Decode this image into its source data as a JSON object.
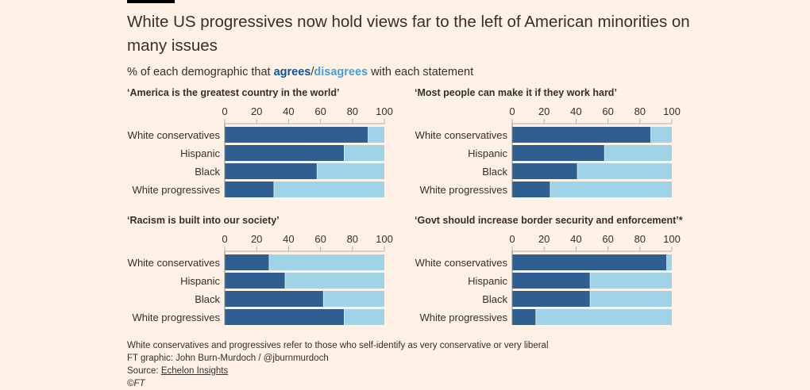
{
  "header": {
    "title": "White US progressives now hold views far to the left of American minorities on many issues",
    "subtitle_prefix": "% of each demographic that ",
    "subtitle_agrees": "agrees",
    "subtitle_slash": "/",
    "subtitle_disagrees": "disagrees",
    "subtitle_suffix": " with each statement"
  },
  "colors": {
    "agree": "#2f5f91",
    "disagree": "#9fd3e8",
    "axis": "#b8b0a8",
    "background": "#fff1e5"
  },
  "chart_data": [
    {
      "type": "bar",
      "orientation": "horizontal",
      "stacked": true,
      "title": "‘America is the greatest country in the world’",
      "categories": [
        "White conservatives",
        "Hispanic",
        "Black",
        "White progressives"
      ],
      "series": [
        {
          "name": "agrees",
          "values": [
            90,
            75,
            58,
            31
          ]
        },
        {
          "name": "disagrees",
          "values": [
            10,
            25,
            42,
            69
          ]
        }
      ],
      "xlim": [
        0,
        100
      ],
      "xticks": [
        "0",
        "20",
        "40",
        "60",
        "80",
        "100"
      ]
    },
    {
      "type": "bar",
      "orientation": "horizontal",
      "stacked": true,
      "title": "‘Most people can make it if they work hard’",
      "categories": [
        "White conservatives",
        "Hispanic",
        "Black",
        "White progressives"
      ],
      "series": [
        {
          "name": "agrees",
          "values": [
            87,
            58,
            41,
            24
          ]
        },
        {
          "name": "disagrees",
          "values": [
            13,
            42,
            59,
            76
          ]
        }
      ],
      "xlim": [
        0,
        100
      ],
      "xticks": [
        "0",
        "20",
        "40",
        "60",
        "80",
        "100"
      ]
    },
    {
      "type": "bar",
      "orientation": "horizontal",
      "stacked": true,
      "title": "‘Racism is built into our society’",
      "categories": [
        "White conservatives",
        "Hispanic",
        "Black",
        "White progressives"
      ],
      "series": [
        {
          "name": "agrees",
          "values": [
            28,
            38,
            62,
            75
          ]
        },
        {
          "name": "disagrees",
          "values": [
            72,
            62,
            38,
            25
          ]
        }
      ],
      "xlim": [
        0,
        100
      ],
      "xticks": [
        "0",
        "20",
        "40",
        "60",
        "80",
        "100"
      ]
    },
    {
      "type": "bar",
      "orientation": "horizontal",
      "stacked": true,
      "title": "‘Govt should increase border security and enforcement’*",
      "categories": [
        "White conservatives",
        "Hispanic",
        "Black",
        "White progressives"
      ],
      "series": [
        {
          "name": "agrees",
          "values": [
            97,
            49,
            49,
            15
          ]
        },
        {
          "name": "disagrees",
          "values": [
            3,
            51,
            51,
            85
          ]
        }
      ],
      "xlim": [
        0,
        100
      ],
      "xticks": [
        "0",
        "20",
        "40",
        "60",
        "80",
        "100"
      ]
    }
  ],
  "footer": {
    "note": "White conservatives and progressives refer to those who self-identify as very conservative or very liberal",
    "credit": "FT graphic: John Burn-Murdoch / @jburnmurdoch",
    "source_prefix": "Source: ",
    "source_link": "Echelon Insights",
    "copyright": "©FT"
  }
}
